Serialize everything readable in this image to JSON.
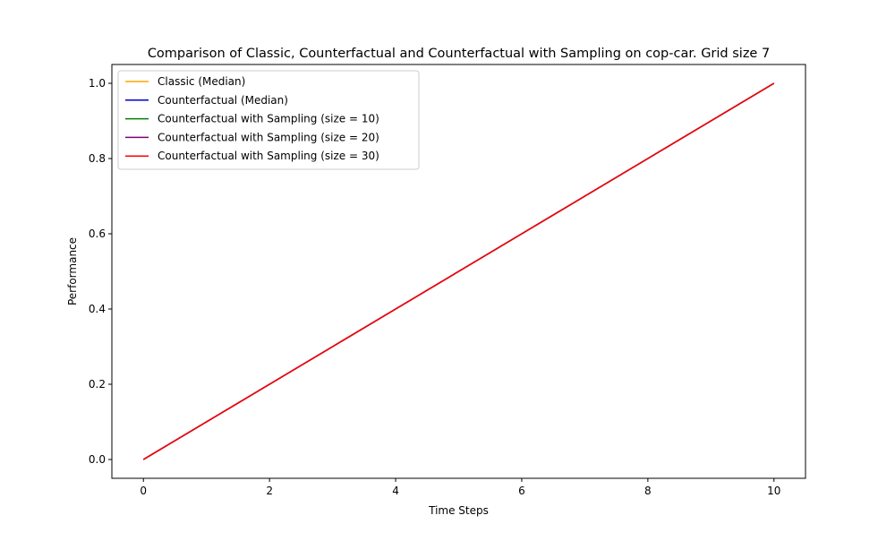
{
  "chart_data": {
    "type": "line",
    "title": "Comparison of Classic, Counterfactual and Counterfactual with Sampling on cop-car. Grid size 7",
    "xlabel": "Time Steps",
    "ylabel": "Performance",
    "xlim": [
      -0.5,
      10.5
    ],
    "ylim": [
      -0.05,
      1.05
    ],
    "xticks": [
      0,
      2,
      4,
      6,
      8,
      10
    ],
    "yticks": [
      0.0,
      0.2,
      0.4,
      0.6,
      0.8,
      1.0
    ],
    "xtick_labels": [
      "0",
      "2",
      "4",
      "6",
      "8",
      "10"
    ],
    "ytick_labels": [
      "0.0",
      "0.2",
      "0.4",
      "0.6",
      "0.8",
      "1.0"
    ],
    "grid": false,
    "legend_position": "upper-left",
    "x": [
      0,
      1,
      2,
      3,
      4,
      5,
      6,
      7,
      8,
      9,
      10
    ],
    "series": [
      {
        "name": "Classic (Median)",
        "color": "#ffa500",
        "values": [
          0.0,
          0.1,
          0.2,
          0.3,
          0.4,
          0.5,
          0.6,
          0.7,
          0.8,
          0.9,
          1.0
        ]
      },
      {
        "name": "Counterfactual (Median)",
        "color": "#0000cd",
        "values": [
          0.0,
          0.1,
          0.2,
          0.3,
          0.4,
          0.5,
          0.6,
          0.7,
          0.8,
          0.9,
          1.0
        ]
      },
      {
        "name": "Counterfactual with Sampling (size = 10)",
        "color": "#008000",
        "values": [
          0.0,
          0.1,
          0.2,
          0.3,
          0.4,
          0.5,
          0.6,
          0.7,
          0.8,
          0.9,
          1.0
        ]
      },
      {
        "name": "Counterfactual with Sampling (size = 20)",
        "color": "#800080",
        "values": [
          0.0,
          0.1,
          0.2,
          0.3,
          0.4,
          0.5,
          0.6,
          0.7,
          0.8,
          0.9,
          1.0
        ]
      },
      {
        "name": "Counterfactual with Sampling (size = 30)",
        "color": "#ff0000",
        "values": [
          0.0,
          0.1,
          0.2,
          0.3,
          0.4,
          0.5,
          0.6,
          0.7,
          0.8,
          0.9,
          1.0
        ]
      }
    ]
  }
}
